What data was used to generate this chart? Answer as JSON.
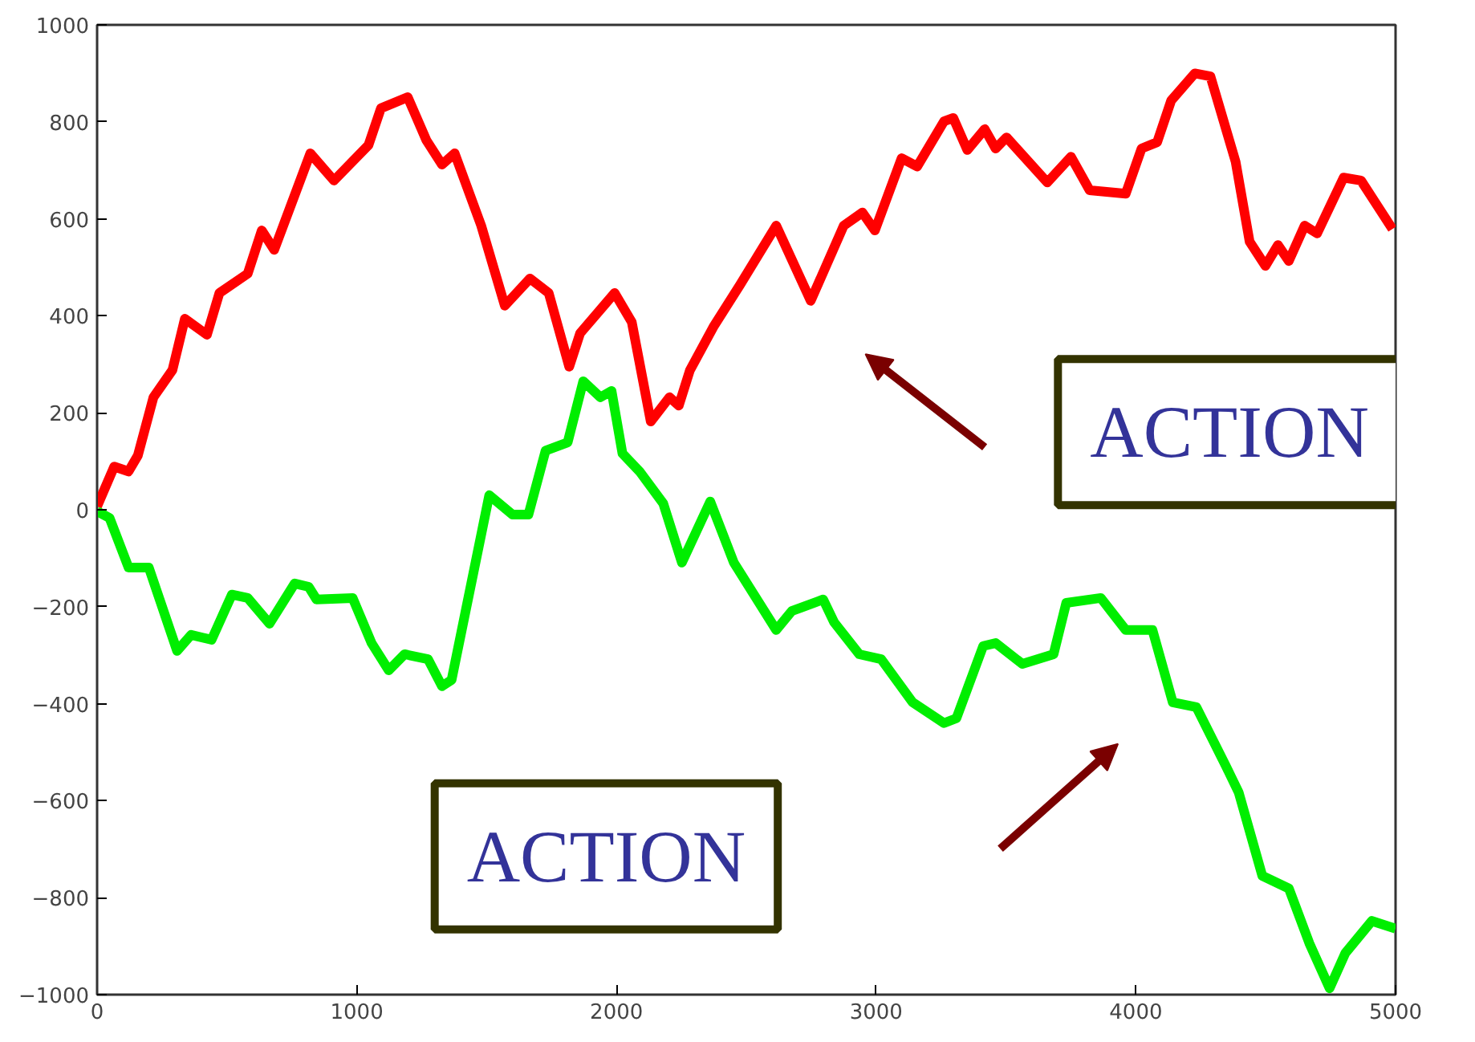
{
  "chart_data": {
    "type": "line",
    "xlim": [
      0,
      5000
    ],
    "ylim": [
      -1000,
      1000
    ],
    "xticks": [
      0,
      1000,
      2000,
      3000,
      4000,
      5000
    ],
    "yticks": [
      -1000,
      -800,
      -600,
      -400,
      -200,
      0,
      200,
      400,
      600,
      800,
      1000
    ],
    "grid": false,
    "marker": "none",
    "line_style": "solid",
    "annotations": [
      "ACTION",
      "ACTION"
    ],
    "series": [
      {
        "color": "#ff0000",
        "x": [
          0,
          66,
          121,
          157,
          217,
          290,
          338,
          423,
          471,
          580,
          634,
          682,
          821,
          912,
          1045,
          1093,
          1196,
          1268,
          1328,
          1377,
          1479,
          1570,
          1667,
          1739,
          1818,
          1860,
          1993,
          2059,
          2132,
          2204,
          2240,
          2283,
          2373,
          2476,
          2615,
          2748,
          2875,
          2947,
          2995,
          3098,
          3158,
          3261,
          3297,
          3351,
          3418,
          3460,
          3502,
          3659,
          3750,
          3822,
          3961,
          4022,
          4082,
          4136,
          4227,
          4287,
          4384,
          4438,
          4499,
          4547,
          4589,
          4650,
          4698,
          4800,
          4867,
          4988
        ],
        "values": [
          7,
          89,
          79,
          112,
          232,
          288,
          394,
          361,
          447,
          487,
          576,
          536,
          735,
          679,
          752,
          828,
          851,
          762,
          712,
          735,
          586,
          421,
          477,
          447,
          295,
          364,
          447,
          387,
          182,
          232,
          215,
          288,
          377,
          464,
          586,
          431,
          586,
          613,
          576,
          725,
          708,
          801,
          808,
          742,
          785,
          745,
          768,
          675,
          728,
          659,
          652,
          745,
          758,
          844,
          900,
          894,
          718,
          553,
          503,
          546,
          513,
          586,
          570,
          685,
          679,
          579
        ]
      },
      {
        "color": "#00ee00",
        "x": [
          0,
          48,
          121,
          199,
          308,
          362,
          441,
          519,
          580,
          664,
          761,
          815,
          845,
          984,
          1057,
          1123,
          1184,
          1274,
          1328,
          1365,
          1510,
          1600,
          1661,
          1727,
          1812,
          1872,
          1938,
          1981,
          2023,
          2089,
          2180,
          2252,
          2361,
          2452,
          2615,
          2675,
          2796,
          2838,
          2935,
          3019,
          3140,
          3261,
          3309,
          3412,
          3460,
          3563,
          3683,
          3732,
          3865,
          3961,
          4064,
          4142,
          4233,
          4348,
          4396,
          4487,
          4589,
          4668,
          4746,
          4807,
          4909,
          5000
        ],
        "values": [
          -3,
          -17,
          -119,
          -119,
          -291,
          -258,
          -268,
          -175,
          -182,
          -235,
          -152,
          -159,
          -185,
          -182,
          -275,
          -331,
          -298,
          -308,
          -364,
          -351,
          30,
          -10,
          -10,
          122,
          139,
          265,
          232,
          245,
          116,
          79,
          13,
          -109,
          17,
          -109,
          -248,
          -209,
          -185,
          -232,
          -298,
          -308,
          -397,
          -440,
          -430,
          -281,
          -275,
          -318,
          -298,
          -192,
          -182,
          -248,
          -248,
          -397,
          -407,
          -530,
          -583,
          -755,
          -781,
          -894,
          -987,
          -914,
          -848,
          -864
        ]
      }
    ]
  }
}
